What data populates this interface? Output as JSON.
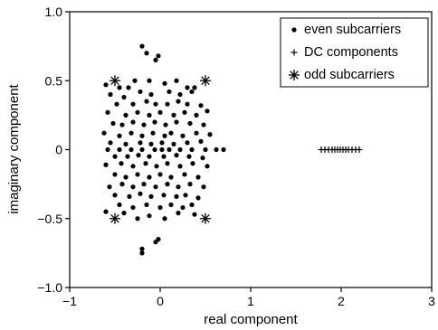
{
  "chart_data": {
    "type": "scatter",
    "xlabel": "real component",
    "ylabel": "imaginary component",
    "xlim": [
      -1,
      3
    ],
    "ylim": [
      -1,
      1
    ],
    "x_ticks": [
      -1,
      0,
      1,
      2,
      3
    ],
    "x_tick_labels": [
      "−1",
      "0",
      "1",
      "2",
      "3"
    ],
    "y_ticks": [
      -1,
      -0.5,
      0,
      0.5,
      1
    ],
    "y_tick_labels": [
      "−1.0",
      "−0.5",
      "0",
      "0.5",
      "1.0"
    ],
    "grid": false,
    "legend_position": "top-right",
    "series": [
      {
        "name": "even subcarriers",
        "marker": "dot",
        "points": [
          [
            -0.2,
            0.75
          ],
          [
            -0.15,
            0.7
          ],
          [
            -0.02,
            0.68
          ],
          [
            -0.05,
            0.65
          ],
          [
            -0.2,
            -0.72
          ],
          [
            -0.2,
            -0.75
          ],
          [
            -0.05,
            -0.67
          ],
          [
            -0.02,
            -0.65
          ],
          [
            -0.6,
            0.47
          ],
          [
            -0.45,
            0.45
          ],
          [
            -0.35,
            0.45
          ],
          [
            -0.28,
            0.5
          ],
          [
            -0.12,
            0.5
          ],
          [
            0.05,
            0.48
          ],
          [
            0.18,
            0.5
          ],
          [
            0.3,
            0.45
          ],
          [
            0.38,
            0.45
          ],
          [
            -0.55,
            0.4
          ],
          [
            -0.4,
            0.38
          ],
          [
            -0.22,
            0.42
          ],
          [
            -0.1,
            0.4
          ],
          [
            0.1,
            0.42
          ],
          [
            0.22,
            0.4
          ],
          [
            0.35,
            0.42
          ],
          [
            -0.48,
            0.33
          ],
          [
            -0.3,
            0.33
          ],
          [
            -0.15,
            0.35
          ],
          [
            -0.05,
            0.33
          ],
          [
            0.08,
            0.33
          ],
          [
            0.2,
            0.35
          ],
          [
            0.3,
            0.33
          ],
          [
            0.45,
            0.32
          ],
          [
            -0.58,
            0.27
          ],
          [
            -0.38,
            0.25
          ],
          [
            -0.25,
            0.27
          ],
          [
            -0.12,
            0.25
          ],
          [
            0.0,
            0.27
          ],
          [
            0.15,
            0.25
          ],
          [
            0.27,
            0.27
          ],
          [
            0.4,
            0.25
          ],
          [
            0.52,
            0.28
          ],
          [
            -0.52,
            0.19
          ],
          [
            -0.42,
            0.18
          ],
          [
            -0.3,
            0.2
          ],
          [
            -0.18,
            0.18
          ],
          [
            -0.06,
            0.2
          ],
          [
            0.06,
            0.18
          ],
          [
            0.18,
            0.2
          ],
          [
            0.33,
            0.19
          ],
          [
            0.48,
            0.18
          ],
          [
            -0.62,
            0.12
          ],
          [
            -0.45,
            0.1
          ],
          [
            -0.32,
            0.12
          ],
          [
            -0.2,
            0.1
          ],
          [
            -0.08,
            0.12
          ],
          [
            0.05,
            0.1
          ],
          [
            0.12,
            0.12
          ],
          [
            0.25,
            0.1
          ],
          [
            0.4,
            0.12
          ],
          [
            0.55,
            0.11
          ],
          [
            -0.55,
            0.05
          ],
          [
            -0.38,
            0.04
          ],
          [
            -0.22,
            0.05
          ],
          [
            -0.1,
            0.04
          ],
          [
            0.02,
            0.05
          ],
          [
            0.15,
            0.04
          ],
          [
            0.3,
            0.05
          ],
          [
            0.45,
            0.06
          ],
          [
            -0.58,
            0.0
          ],
          [
            -0.45,
            0.0
          ],
          [
            -0.32,
            0.0
          ],
          [
            -0.2,
            0.0
          ],
          [
            -0.06,
            0.0
          ],
          [
            0.02,
            0.0
          ],
          [
            0.1,
            0.0
          ],
          [
            0.22,
            0.0
          ],
          [
            0.35,
            0.0
          ],
          [
            0.5,
            0.0
          ],
          [
            0.62,
            0.0
          ],
          [
            0.7,
            0.0
          ],
          [
            -0.5,
            -0.05
          ],
          [
            -0.36,
            -0.05
          ],
          [
            -0.24,
            -0.04
          ],
          [
            -0.12,
            -0.05
          ],
          [
            0.04,
            -0.05
          ],
          [
            0.18,
            -0.04
          ],
          [
            0.32,
            -0.05
          ],
          [
            0.47,
            -0.06
          ],
          [
            -0.6,
            -0.11
          ],
          [
            -0.43,
            -0.1
          ],
          [
            -0.3,
            -0.12
          ],
          [
            -0.16,
            -0.1
          ],
          [
            -0.04,
            -0.12
          ],
          [
            0.08,
            -0.1
          ],
          [
            0.22,
            -0.12
          ],
          [
            0.36,
            -0.1
          ],
          [
            0.52,
            -0.12
          ],
          [
            -0.5,
            -0.18
          ],
          [
            -0.38,
            -0.2
          ],
          [
            -0.25,
            -0.18
          ],
          [
            -0.12,
            -0.2
          ],
          [
            0.0,
            -0.18
          ],
          [
            0.12,
            -0.2
          ],
          [
            0.27,
            -0.18
          ],
          [
            0.42,
            -0.2
          ],
          [
            -0.56,
            -0.27
          ],
          [
            -0.42,
            -0.25
          ],
          [
            -0.3,
            -0.27
          ],
          [
            -0.18,
            -0.25
          ],
          [
            -0.05,
            -0.27
          ],
          [
            0.08,
            -0.25
          ],
          [
            0.2,
            -0.27
          ],
          [
            0.33,
            -0.25
          ],
          [
            0.48,
            -0.27
          ],
          [
            -0.5,
            -0.33
          ],
          [
            -0.34,
            -0.34
          ],
          [
            -0.22,
            -0.32
          ],
          [
            -0.1,
            -0.34
          ],
          [
            0.04,
            -0.33
          ],
          [
            0.18,
            -0.34
          ],
          [
            0.28,
            -0.33
          ],
          [
            0.42,
            -0.35
          ],
          [
            -0.45,
            -0.4
          ],
          [
            -0.3,
            -0.42
          ],
          [
            -0.15,
            -0.4
          ],
          [
            0.0,
            -0.42
          ],
          [
            0.12,
            -0.4
          ],
          [
            0.25,
            -0.42
          ],
          [
            0.35,
            -0.4
          ],
          [
            -0.6,
            -0.45
          ],
          [
            -0.4,
            -0.46
          ],
          [
            -0.25,
            -0.5
          ],
          [
            -0.12,
            -0.48
          ],
          [
            0.05,
            -0.5
          ],
          [
            0.2,
            -0.46
          ],
          [
            0.38,
            -0.47
          ]
        ]
      },
      {
        "name": "DC components",
        "marker": "plus",
        "points": [
          [
            1.78,
            0.0
          ],
          [
            1.82,
            0.0
          ],
          [
            1.86,
            0.0
          ],
          [
            1.9,
            0.0
          ],
          [
            1.93,
            0.0
          ],
          [
            1.96,
            0.0
          ],
          [
            1.99,
            0.0
          ],
          [
            2.02,
            0.0
          ],
          [
            2.05,
            0.0
          ],
          [
            2.08,
            0.0
          ],
          [
            2.12,
            0.0
          ],
          [
            2.16,
            0.0
          ],
          [
            2.2,
            0.0
          ]
        ]
      },
      {
        "name": "odd subcarriers",
        "marker": "asterisk",
        "points": [
          [
            -0.5,
            0.5
          ],
          [
            0.5,
            0.5
          ],
          [
            -0.5,
            -0.5
          ],
          [
            0.5,
            -0.5
          ]
        ]
      }
    ]
  }
}
